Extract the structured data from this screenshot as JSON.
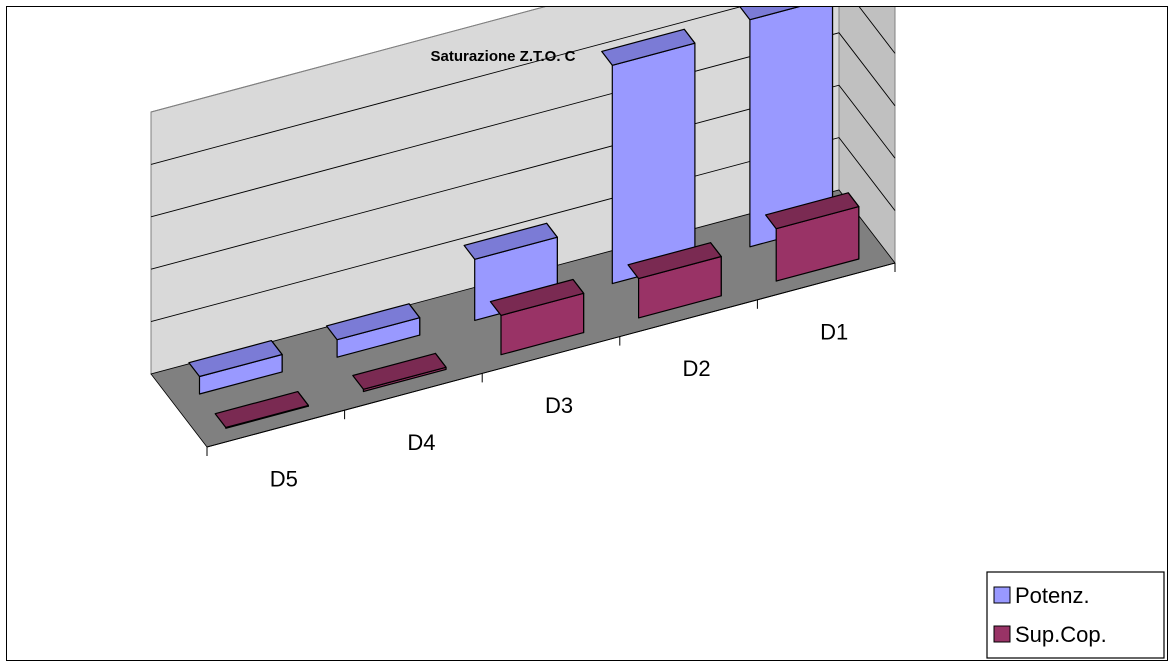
{
  "chart_data": {
    "type": "bar",
    "title": "Saturazione Z.T.O. C",
    "categories": [
      "D5",
      "D4",
      "D3",
      "D2",
      "D1"
    ],
    "series": [
      {
        "name": "Potenz.",
        "values": [
          0.4,
          0.4,
          1.4,
          5.0,
          5.2
        ]
      },
      {
        "name": "Sup.Cop.",
        "values": [
          0.0,
          0.05,
          0.9,
          0.9,
          1.2
        ]
      }
    ],
    "ylim": [
      0,
      6
    ],
    "grid": true,
    "legend_position": "bottom-right",
    "colors": {
      "potenz_front": "#9999ff",
      "potenz_top": "#7b7bd6",
      "potenz_side": "#6e6ec2",
      "supcop_front": "#993366",
      "supcop_top": "#7a2a52",
      "supcop_side": "#6a2247",
      "floor": "#808080",
      "wall_back": "#d9d9d9",
      "wall_side": "#c0c0c0"
    }
  }
}
